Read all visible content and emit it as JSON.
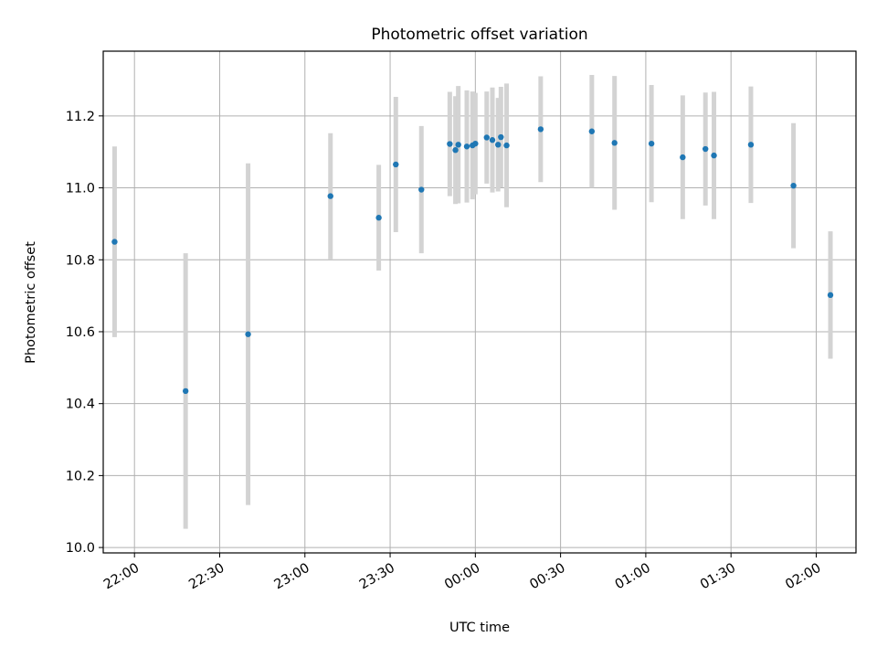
{
  "chart_data": {
    "type": "scatter",
    "title": "Photometric offset variation",
    "xlabel": "UTC time",
    "ylabel": "Photometric offset",
    "x_tick_labels": [
      "22:00",
      "22:30",
      "23:00",
      "23:30",
      "00:00",
      "00:30",
      "01:00",
      "01:30",
      "02:00"
    ],
    "y_tick_labels": [
      "10.0",
      "10.2",
      "10.4",
      "10.6",
      "10.8",
      "11.0",
      "11.2"
    ],
    "xlim": [
      "21:49",
      "02:14"
    ],
    "ylim": [
      9.985,
      11.38
    ],
    "grid": true,
    "colors": {
      "point": "#1f77b4",
      "errorbar": "#d3d3d3",
      "grid": "#b0b0b0"
    },
    "series": [
      {
        "points": [
          {
            "x": "21:53",
            "y": 10.85,
            "err": 0.265
          },
          {
            "x": "22:18",
            "y": 10.435,
            "err": 0.383
          },
          {
            "x": "22:40",
            "y": 10.593,
            "err": 0.475
          },
          {
            "x": "23:09",
            "y": 10.977,
            "err": 0.175
          },
          {
            "x": "23:26",
            "y": 10.917,
            "err": 0.147
          },
          {
            "x": "23:32",
            "y": 11.065,
            "err": 0.188
          },
          {
            "x": "23:41",
            "y": 10.995,
            "err": 0.177
          },
          {
            "x": "23:51",
            "y": 11.122,
            "err": 0.145
          },
          {
            "x": "23:53",
            "y": 11.105,
            "err": 0.15
          },
          {
            "x": "23:54",
            "y": 11.12,
            "err": 0.163
          },
          {
            "x": "23:57",
            "y": 11.115,
            "err": 0.156
          },
          {
            "x": "23:59",
            "y": 11.118,
            "err": 0.15
          },
          {
            "x": "00:00",
            "y": 11.123,
            "err": 0.141
          },
          {
            "x": "00:04",
            "y": 11.14,
            "err": 0.128
          },
          {
            "x": "00:06",
            "y": 11.133,
            "err": 0.146
          },
          {
            "x": "00:08",
            "y": 11.12,
            "err": 0.13
          },
          {
            "x": "00:09",
            "y": 11.141,
            "err": 0.14
          },
          {
            "x": "00:11",
            "y": 11.118,
            "err": 0.172
          },
          {
            "x": "00:23",
            "y": 11.163,
            "err": 0.147
          },
          {
            "x": "00:41",
            "y": 11.157,
            "err": 0.157
          },
          {
            "x": "00:49",
            "y": 11.125,
            "err": 0.186
          },
          {
            "x": "01:02",
            "y": 11.123,
            "err": 0.163
          },
          {
            "x": "01:13",
            "y": 11.085,
            "err": 0.172
          },
          {
            "x": "01:21",
            "y": 11.108,
            "err": 0.157
          },
          {
            "x": "01:24",
            "y": 11.09,
            "err": 0.177
          },
          {
            "x": "01:37",
            "y": 11.12,
            "err": 0.162
          },
          {
            "x": "01:52",
            "y": 11.006,
            "err": 0.174
          },
          {
            "x": "02:05",
            "y": 10.702,
            "err": 0.177
          }
        ]
      }
    ]
  }
}
